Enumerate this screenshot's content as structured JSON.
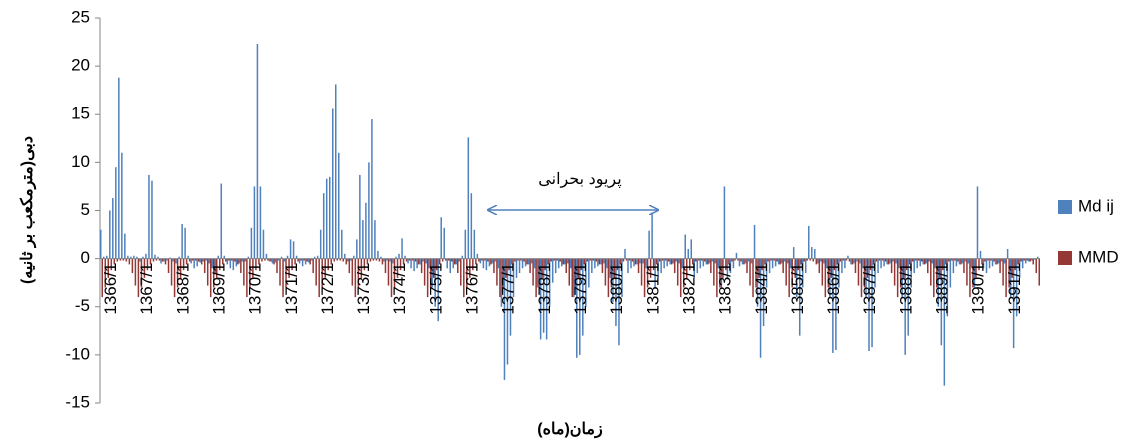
{
  "chart_data": {
    "type": "bar",
    "y_label": "دبی(مترمکعب بر ثانیه)",
    "x_label": "زمان(ماه)",
    "annotation": "پريود بحرانی",
    "ylim": [
      -15,
      25
    ],
    "yticks": [
      -15,
      -10,
      -5,
      0,
      5,
      10,
      15,
      20,
      25
    ],
    "categories": [
      "1366/1",
      null,
      null,
      null,
      null,
      null,
      null,
      null,
      null,
      null,
      null,
      null,
      "1367/1",
      null,
      null,
      null,
      null,
      null,
      null,
      null,
      null,
      null,
      null,
      null,
      "1368/1",
      null,
      null,
      null,
      null,
      null,
      null,
      null,
      null,
      null,
      null,
      null,
      "1369/1",
      null,
      null,
      null,
      null,
      null,
      null,
      null,
      null,
      null,
      null,
      null,
      "1370/1",
      null,
      null,
      null,
      null,
      null,
      null,
      null,
      null,
      null,
      null,
      null,
      "1371/1",
      null,
      null,
      null,
      null,
      null,
      null,
      null,
      null,
      null,
      null,
      null,
      "1372/1",
      null,
      null,
      null,
      null,
      null,
      null,
      null,
      null,
      null,
      null,
      null,
      "1373/1",
      null,
      null,
      null,
      null,
      null,
      null,
      null,
      null,
      null,
      null,
      null,
      "1374/1",
      null,
      null,
      null,
      null,
      null,
      null,
      null,
      null,
      null,
      null,
      null,
      "1375/1",
      null,
      null,
      null,
      null,
      null,
      null,
      null,
      null,
      null,
      null,
      null,
      "1376/1",
      null,
      null,
      null,
      null,
      null,
      null,
      null,
      null,
      null,
      null,
      null,
      "1377/1",
      null,
      null,
      null,
      null,
      null,
      null,
      null,
      null,
      null,
      null,
      null,
      "1378/1",
      null,
      null,
      null,
      null,
      null,
      null,
      null,
      null,
      null,
      null,
      null,
      "1379/1",
      null,
      null,
      null,
      null,
      null,
      null,
      null,
      null,
      null,
      null,
      null,
      "1380/1",
      null,
      null,
      null,
      null,
      null,
      null,
      null,
      null,
      null,
      null,
      null,
      "1381/1",
      null,
      null,
      null,
      null,
      null,
      null,
      null,
      null,
      null,
      null,
      null,
      "1382/1",
      null,
      null,
      null,
      null,
      null,
      null,
      null,
      null,
      null,
      null,
      null,
      "1383/1",
      null,
      null,
      null,
      null,
      null,
      null,
      null,
      null,
      null,
      null,
      null,
      "1384/1",
      null,
      null,
      null,
      null,
      null,
      null,
      null,
      null,
      null,
      null,
      null,
      "1385/1",
      null,
      null,
      null,
      null,
      null,
      null,
      null,
      null,
      null,
      null,
      null,
      "1386/1",
      null,
      null,
      null,
      null,
      null,
      null,
      null,
      null,
      null,
      null,
      null,
      "1387/1",
      null,
      null,
      null,
      null,
      null,
      null,
      null,
      null,
      null,
      null,
      null,
      "1388/1",
      null,
      null,
      null,
      null,
      null,
      null,
      null,
      null,
      null,
      null,
      null,
      "1389/1",
      null,
      null,
      null,
      null,
      null,
      null,
      null,
      null,
      null,
      null,
      null,
      "1390/1",
      null,
      null,
      null,
      null,
      null,
      null,
      null,
      null,
      null,
      null,
      null,
      "1391/1",
      null,
      null,
      null,
      null,
      null,
      null,
      null,
      null,
      null,
      null,
      null
    ],
    "series": [
      {
        "name": "Md ij",
        "color": "#4f81bd",
        "values": [
          3,
          0.2,
          0.3,
          5,
          6.3,
          9.5,
          18.8,
          11,
          2.6,
          0.3,
          0.2,
          0.3,
          0.2,
          -0.3,
          0.2,
          0.5,
          8.7,
          8.1,
          0.4,
          0.2,
          -0.5,
          -0.3,
          -0.2,
          0.1,
          -0.3,
          -0.5,
          0.2,
          3.6,
          3.2,
          0.3,
          -0.5,
          -1,
          -0.8,
          -0.4,
          -0.3,
          -0.2,
          -0.5,
          -1,
          -1.5,
          0.3,
          7.8,
          0.3,
          -0.6,
          -1,
          -1.2,
          -0.8,
          -0.5,
          -0.3,
          -0.3,
          0.2,
          3.2,
          7.5,
          22.3,
          7.5,
          3,
          0.5,
          -0.3,
          -0.5,
          -0.4,
          -0.2,
          0.2,
          -0.3,
          0.3,
          2,
          1.8,
          0.3,
          -0.5,
          -0.8,
          -0.6,
          -0.4,
          -0.2,
          0.2,
          0.3,
          3,
          6.8,
          8.3,
          8.5,
          15.6,
          18.1,
          11,
          3,
          0.5,
          -0.3,
          -0.2,
          0.3,
          2,
          8.7,
          4,
          5.8,
          10,
          14.5,
          4,
          0.8,
          0.2,
          -0.3,
          -0.2,
          -0.3,
          -0.5,
          0.2,
          0.5,
          2.1,
          0.3,
          -0.5,
          -1,
          -1.3,
          -1,
          -0.6,
          -0.3,
          -0.5,
          -1,
          -3,
          -5,
          -6.5,
          4.3,
          3.2,
          -1,
          -1.5,
          -1,
          -0.6,
          -0.3,
          0.3,
          3,
          12.6,
          6.8,
          3,
          0.5,
          -0.5,
          -1,
          -1.2,
          -0.8,
          -0.5,
          -0.3,
          -1,
          -5,
          -12.6,
          -11,
          -8,
          -4,
          -2,
          -1.5,
          -1,
          -0.8,
          -0.6,
          -0.5,
          -1,
          -3,
          -8.4,
          -7.7,
          -8.4,
          -5,
          -2.5,
          -1.5,
          -1,
          -0.8,
          -0.6,
          -0.5,
          -1,
          -4,
          -10.3,
          -10,
          -8,
          -5,
          -3,
          -1.5,
          -1,
          -0.8,
          -0.6,
          -0.5,
          -1,
          -2,
          -4.5,
          -7,
          -9,
          -4,
          1,
          -1.5,
          -1,
          -0.8,
          -0.6,
          -0.5,
          -0.5,
          -1,
          2.9,
          4.8,
          -3,
          -2,
          -1.5,
          -1,
          -0.8,
          -0.6,
          -0.5,
          -0.3,
          -0.5,
          -1,
          2.5,
          1,
          2,
          -2,
          -1.5,
          -1,
          -0.8,
          -0.6,
          -0.5,
          -0.3,
          -0.5,
          -1,
          -3,
          7.5,
          -2,
          -1.5,
          -1,
          0.6,
          -0.8,
          -0.6,
          -0.5,
          -0.3,
          -0.5,
          3.5,
          -5,
          -10.3,
          -7,
          -3,
          -1.5,
          -1,
          -0.8,
          -0.6,
          -0.5,
          -0.3,
          -0.5,
          -1,
          1.2,
          -4,
          -8,
          -3,
          -1.5,
          3.4,
          1.2,
          1,
          -0.5,
          -0.3,
          -0.5,
          -1,
          -4,
          -9.8,
          -9.5,
          -3,
          -1.5,
          -1,
          0.3,
          -0.6,
          -0.5,
          -0.3,
          -0.5,
          -1,
          -4,
          -9.6,
          -9.2,
          -3,
          -1.5,
          -1,
          -0.8,
          -0.6,
          -0.5,
          -0.3,
          -0.5,
          -1,
          -4,
          -10,
          -8,
          -3,
          -1.5,
          -1,
          -0.8,
          -0.6,
          -0.5,
          -0.3,
          -0.5,
          -1,
          -5,
          -9,
          -13.2,
          -6,
          -3,
          -1.5,
          -0.8,
          -0.6,
          -0.5,
          -0.3,
          -0.5,
          -1,
          -3,
          7.5,
          0.8,
          -1,
          -1.5,
          -1,
          -0.8,
          -0.6,
          -0.5,
          -0.3,
          -0.5,
          1,
          -4,
          -9.3,
          -6,
          -2,
          -1,
          -0.5,
          -0.3,
          -0.2,
          -0.1,
          0.2
        ]
      },
      {
        "name": "MMD",
        "color": "#953735",
        "values": [
          -4,
          -3,
          -2,
          -1.2,
          -0.6,
          -0.3,
          -0.2,
          -0.2,
          -0.3,
          -0.6,
          -1.5,
          -2.8,
          -4,
          -3,
          -2,
          -1.2,
          -0.6,
          -0.3,
          -0.2,
          -0.2,
          -0.3,
          -0.6,
          -1.5,
          -2.8,
          -4,
          -3,
          -2,
          -1.2,
          -0.6,
          -0.3,
          -0.2,
          -0.2,
          -0.3,
          -0.6,
          -1.5,
          -2.8,
          -4,
          -3,
          -2,
          -1.2,
          -0.6,
          -0.3,
          -0.2,
          -0.2,
          -0.3,
          -0.6,
          -1.5,
          -2.8,
          -4,
          -3,
          -2,
          -1.2,
          -0.6,
          -0.3,
          -0.2,
          -0.2,
          -0.3,
          -0.6,
          -1.5,
          -2.8,
          -4,
          -3,
          -2,
          -1.2,
          -0.6,
          -0.3,
          -0.2,
          -0.2,
          -0.3,
          -0.6,
          -1.5,
          -2.8,
          -4,
          -3,
          -2,
          -1.2,
          -0.6,
          -0.3,
          -0.2,
          -0.2,
          -0.3,
          -0.6,
          -1.5,
          -2.8,
          -4,
          -3,
          -2,
          -1.2,
          -0.6,
          -0.3,
          -0.2,
          -0.2,
          -0.3,
          -0.6,
          -1.5,
          -2.8,
          -4,
          -3,
          -2,
          -1.2,
          -0.6,
          -0.3,
          -0.2,
          -0.2,
          -0.3,
          -0.6,
          -1.5,
          -2.8,
          -4,
          -3,
          -2,
          -1.2,
          -0.6,
          -0.3,
          -0.2,
          -0.2,
          -0.3,
          -0.6,
          -1.5,
          -2.8,
          -4,
          -3,
          -2,
          -1.2,
          -0.6,
          -0.3,
          -0.2,
          -0.2,
          -0.3,
          -0.6,
          -1.5,
          -2.8,
          -4,
          -3,
          -2,
          -1.2,
          -0.6,
          -0.3,
          -0.2,
          -0.2,
          -0.3,
          -0.6,
          -1.5,
          -2.8,
          -4,
          -3,
          -2,
          -1.2,
          -0.6,
          -0.3,
          -0.2,
          -0.2,
          -0.3,
          -0.6,
          -1.5,
          -2.8,
          -4,
          -3,
          -2,
          -1.2,
          -0.6,
          -0.3,
          -0.2,
          -0.2,
          -0.3,
          -0.6,
          -1.5,
          -2.8,
          -4,
          -3,
          -2,
          -1.2,
          -0.6,
          -0.3,
          -0.2,
          -0.2,
          -0.3,
          -0.6,
          -1.5,
          -2.8,
          -4,
          -3,
          -2,
          -1.2,
          -0.6,
          -0.3,
          -0.2,
          -0.2,
          -0.3,
          -0.6,
          -1.5,
          -2.8,
          -4,
          -3,
          -2,
          -1.2,
          -0.6,
          -0.3,
          -0.2,
          -0.2,
          -0.3,
          -0.6,
          -1.5,
          -2.8,
          -4,
          -3,
          -2,
          -1.2,
          -0.6,
          -0.3,
          -0.2,
          -0.2,
          -0.3,
          -0.6,
          -1.5,
          -2.8,
          -4,
          -3,
          -2,
          -1.2,
          -0.6,
          -0.3,
          -0.2,
          -0.2,
          -0.3,
          -0.6,
          -1.5,
          -2.8,
          -4,
          -3,
          -2,
          -1.2,
          -0.6,
          -0.3,
          -0.2,
          -0.2,
          -0.3,
          -0.6,
          -1.5,
          -2.8,
          -4,
          -3,
          -2,
          -1.2,
          -0.6,
          -0.3,
          -0.2,
          -0.2,
          -0.3,
          -0.6,
          -1.5,
          -2.8,
          -4,
          -3,
          -2,
          -1.2,
          -0.6,
          -0.3,
          -0.2,
          -0.2,
          -0.3,
          -0.6,
          -1.5,
          -2.8,
          -4,
          -3,
          -2,
          -1.2,
          -0.6,
          -0.3,
          -0.2,
          -0.2,
          -0.3,
          -0.6,
          -1.5,
          -2.8,
          -4,
          -3,
          -2,
          -1.2,
          -0.6,
          -0.3,
          -0.2,
          -0.2,
          -0.3,
          -0.6,
          -1.5,
          -2.8,
          -4,
          -3,
          -2,
          -1.2,
          -0.6,
          -0.3,
          -0.2,
          -0.2,
          -0.3,
          -0.6,
          -1.5,
          -2.8,
          -4,
          -3,
          -2,
          -1.2,
          -0.6,
          -0.3,
          -0.2,
          -0.2,
          -0.3,
          -0.6,
          -1.5,
          -2.8
        ]
      }
    ],
    "legend": "right"
  }
}
